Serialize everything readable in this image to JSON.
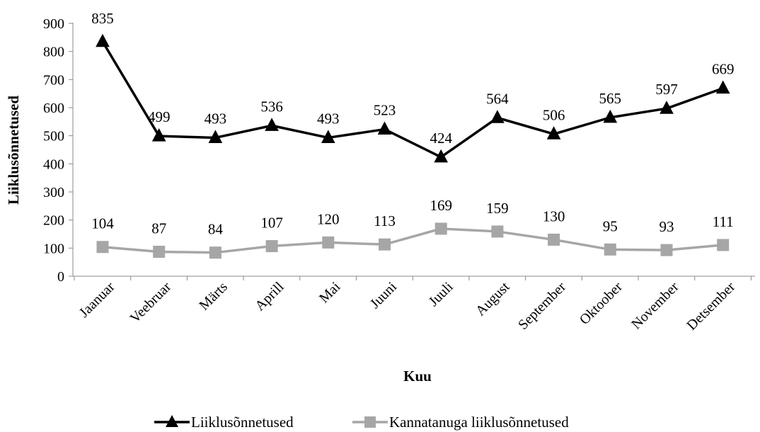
{
  "chart_data": {
    "type": "line",
    "xlabel": "Kuu",
    "ylabel": "Liiklusõnnetused",
    "ylim": [
      0,
      900
    ],
    "yticks": [
      0,
      100,
      200,
      300,
      400,
      500,
      600,
      700,
      800,
      900
    ],
    "grid": false,
    "legend_position": "bottom",
    "categories": [
      "Jaanuar",
      "Veebruar",
      "Märts",
      "Aprill",
      "Mai",
      "Juuni",
      "Juuli",
      "August",
      "September",
      "Oktoober",
      "November",
      "Detsember"
    ],
    "series": [
      {
        "name": "Liiklusõnnetused",
        "values": [
          835,
          499,
          493,
          536,
          493,
          523,
          424,
          564,
          506,
          565,
          597,
          669
        ],
        "color": "#000000",
        "marker": "triangle"
      },
      {
        "name": "Kannatanuga liiklusõnnetused",
        "values": [
          104,
          87,
          84,
          107,
          120,
          113,
          169,
          159,
          130,
          95,
          93,
          111
        ],
        "color": "#a6a6a6",
        "marker": "square"
      }
    ]
  }
}
